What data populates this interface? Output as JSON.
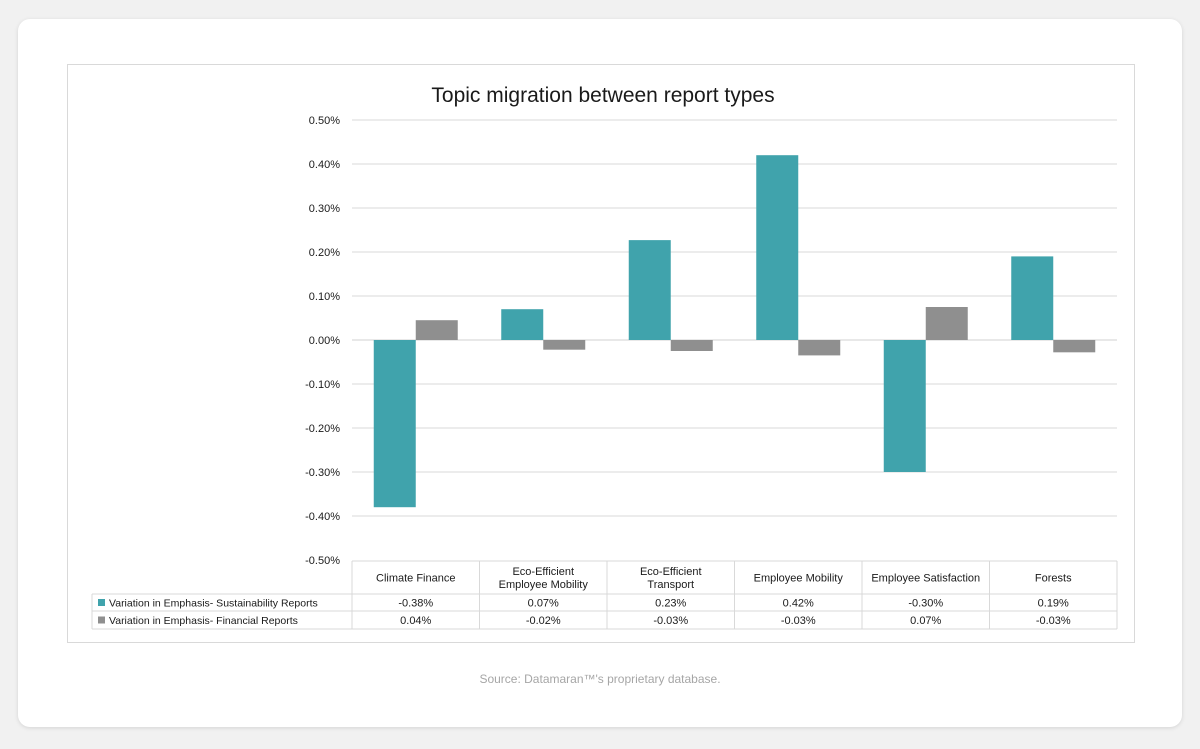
{
  "source": "Source: Datamaran™'s proprietary database.",
  "colors": {
    "series1": "#40a3ac",
    "series2": "#8f8f8f",
    "grid": "#d9d9d9",
    "text": "#1a1a1a"
  },
  "chart_data": {
    "type": "bar",
    "title": "Topic migration between report types",
    "categories": [
      [
        "Climate Finance"
      ],
      [
        "Eco-Efficient",
        "Employee Mobility"
      ],
      [
        "Eco-Efficient",
        "Transport"
      ],
      [
        "Employee Mobility"
      ],
      [
        "Employee Satisfaction"
      ],
      [
        "Forests"
      ]
    ],
    "yticks": [
      "0.50%",
      "0.40%",
      "0.30%",
      "0.20%",
      "0.10%",
      "0.00%",
      "-0.10%",
      "-0.20%",
      "-0.30%",
      "-0.40%",
      "-0.50%"
    ],
    "ylim": [
      -0.5,
      0.5
    ],
    "ylabel": "",
    "xlabel": "",
    "legend": "data-table",
    "series": [
      {
        "name": "Variation in Emphasis- Sustainability Reports",
        "values": [
          -0.38,
          0.07,
          0.227,
          0.42,
          -0.3,
          0.19
        ],
        "labels": [
          "-0.38%",
          "0.07%",
          "0.23%",
          "0.42%",
          "-0.30%",
          "0.19%"
        ]
      },
      {
        "name": "Variation in Emphasis- Financial Reports",
        "values": [
          0.045,
          -0.022,
          -0.025,
          -0.035,
          0.075,
          -0.028
        ],
        "labels": [
          "0.04%",
          "-0.02%",
          "-0.03%",
          "-0.03%",
          "0.07%",
          "-0.03%"
        ]
      }
    ]
  }
}
